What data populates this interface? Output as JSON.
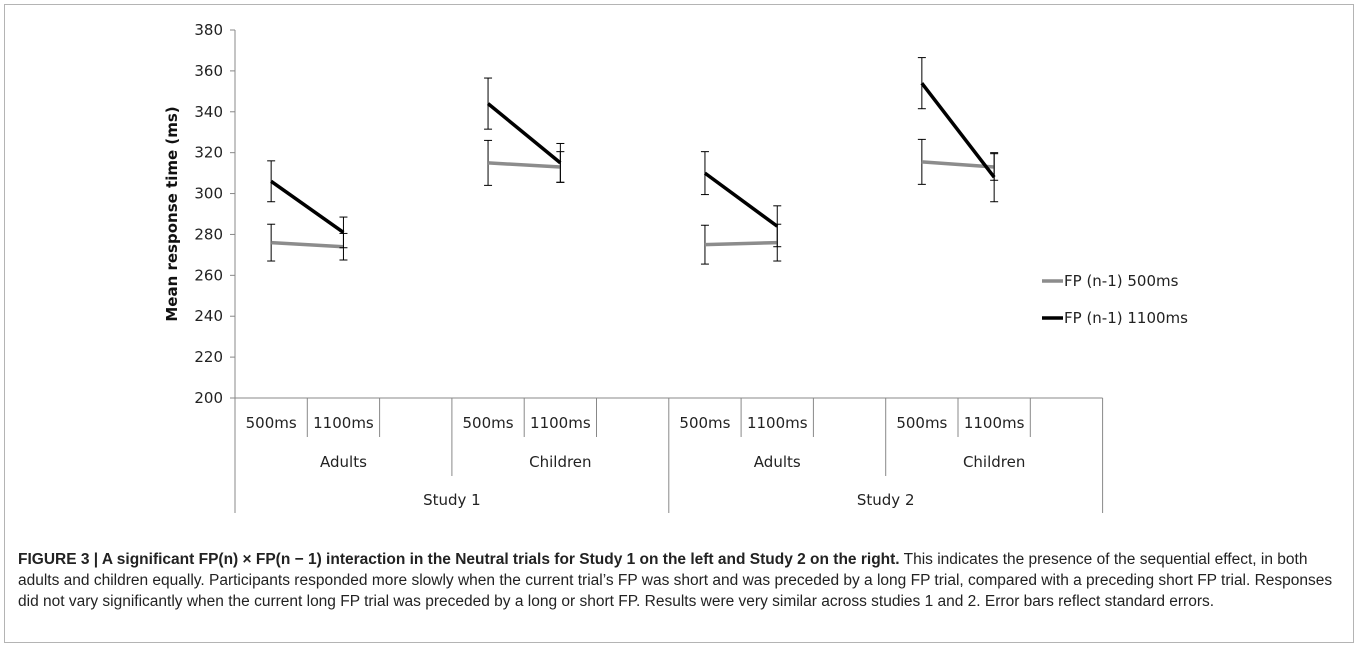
{
  "chart_data": {
    "type": "line",
    "ylabel": "Mean response time (ms)",
    "ylim": [
      200,
      380
    ],
    "yticks": [
      200,
      220,
      240,
      260,
      280,
      300,
      320,
      340,
      360,
      380
    ],
    "grid": false,
    "legend_position": "right",
    "x_levels": {
      "fp_n": [
        "500ms",
        "1100ms"
      ],
      "group": [
        "Adults",
        "Children",
        "Adults",
        "Children"
      ],
      "study": [
        "Study 1",
        "Study 2"
      ]
    },
    "panels": [
      {
        "study": "Study 1",
        "group": "Adults"
      },
      {
        "study": "Study 1",
        "group": "Children"
      },
      {
        "study": "Study 2",
        "group": "Adults"
      },
      {
        "study": "Study 2",
        "group": "Children"
      }
    ],
    "series": [
      {
        "name": "FP (n-1) 500ms",
        "color": "#8c8c8c",
        "values": [
          [
            276,
            274
          ],
          [
            315,
            313
          ],
          [
            275,
            276
          ],
          [
            315.5,
            313
          ]
        ],
        "errors": [
          [
            9,
            6.5
          ],
          [
            11,
            7.5
          ],
          [
            9.5,
            9
          ],
          [
            11,
            6.5
          ]
        ]
      },
      {
        "name": "FP (n-1) 1100ms",
        "color": "#000000",
        "values": [
          [
            306,
            281
          ],
          [
            344,
            315
          ],
          [
            310,
            284
          ],
          [
            354,
            308
          ]
        ],
        "errors": [
          [
            10,
            7.5
          ],
          [
            12.5,
            9.5
          ],
          [
            10.5,
            10
          ],
          [
            12.5,
            12
          ]
        ]
      }
    ]
  },
  "caption": {
    "title": "FIGURE 3 | A significant FP(n) × FP(n − 1) interaction in the Neutral trials for Study 1 on the left and Study 2 on the right.",
    "body": " This indicates the presence of the sequential effect, in both adults and children equally. Participants responded more slowly when the current trial’s FP was short and was preceded by a long FP trial, compared with a preceding short FP trial. Responses did not vary significantly when the current long FP trial was preceded by a long or short FP. Results were very similar across studies 1 and 2. Error bars reflect standard errors."
  }
}
